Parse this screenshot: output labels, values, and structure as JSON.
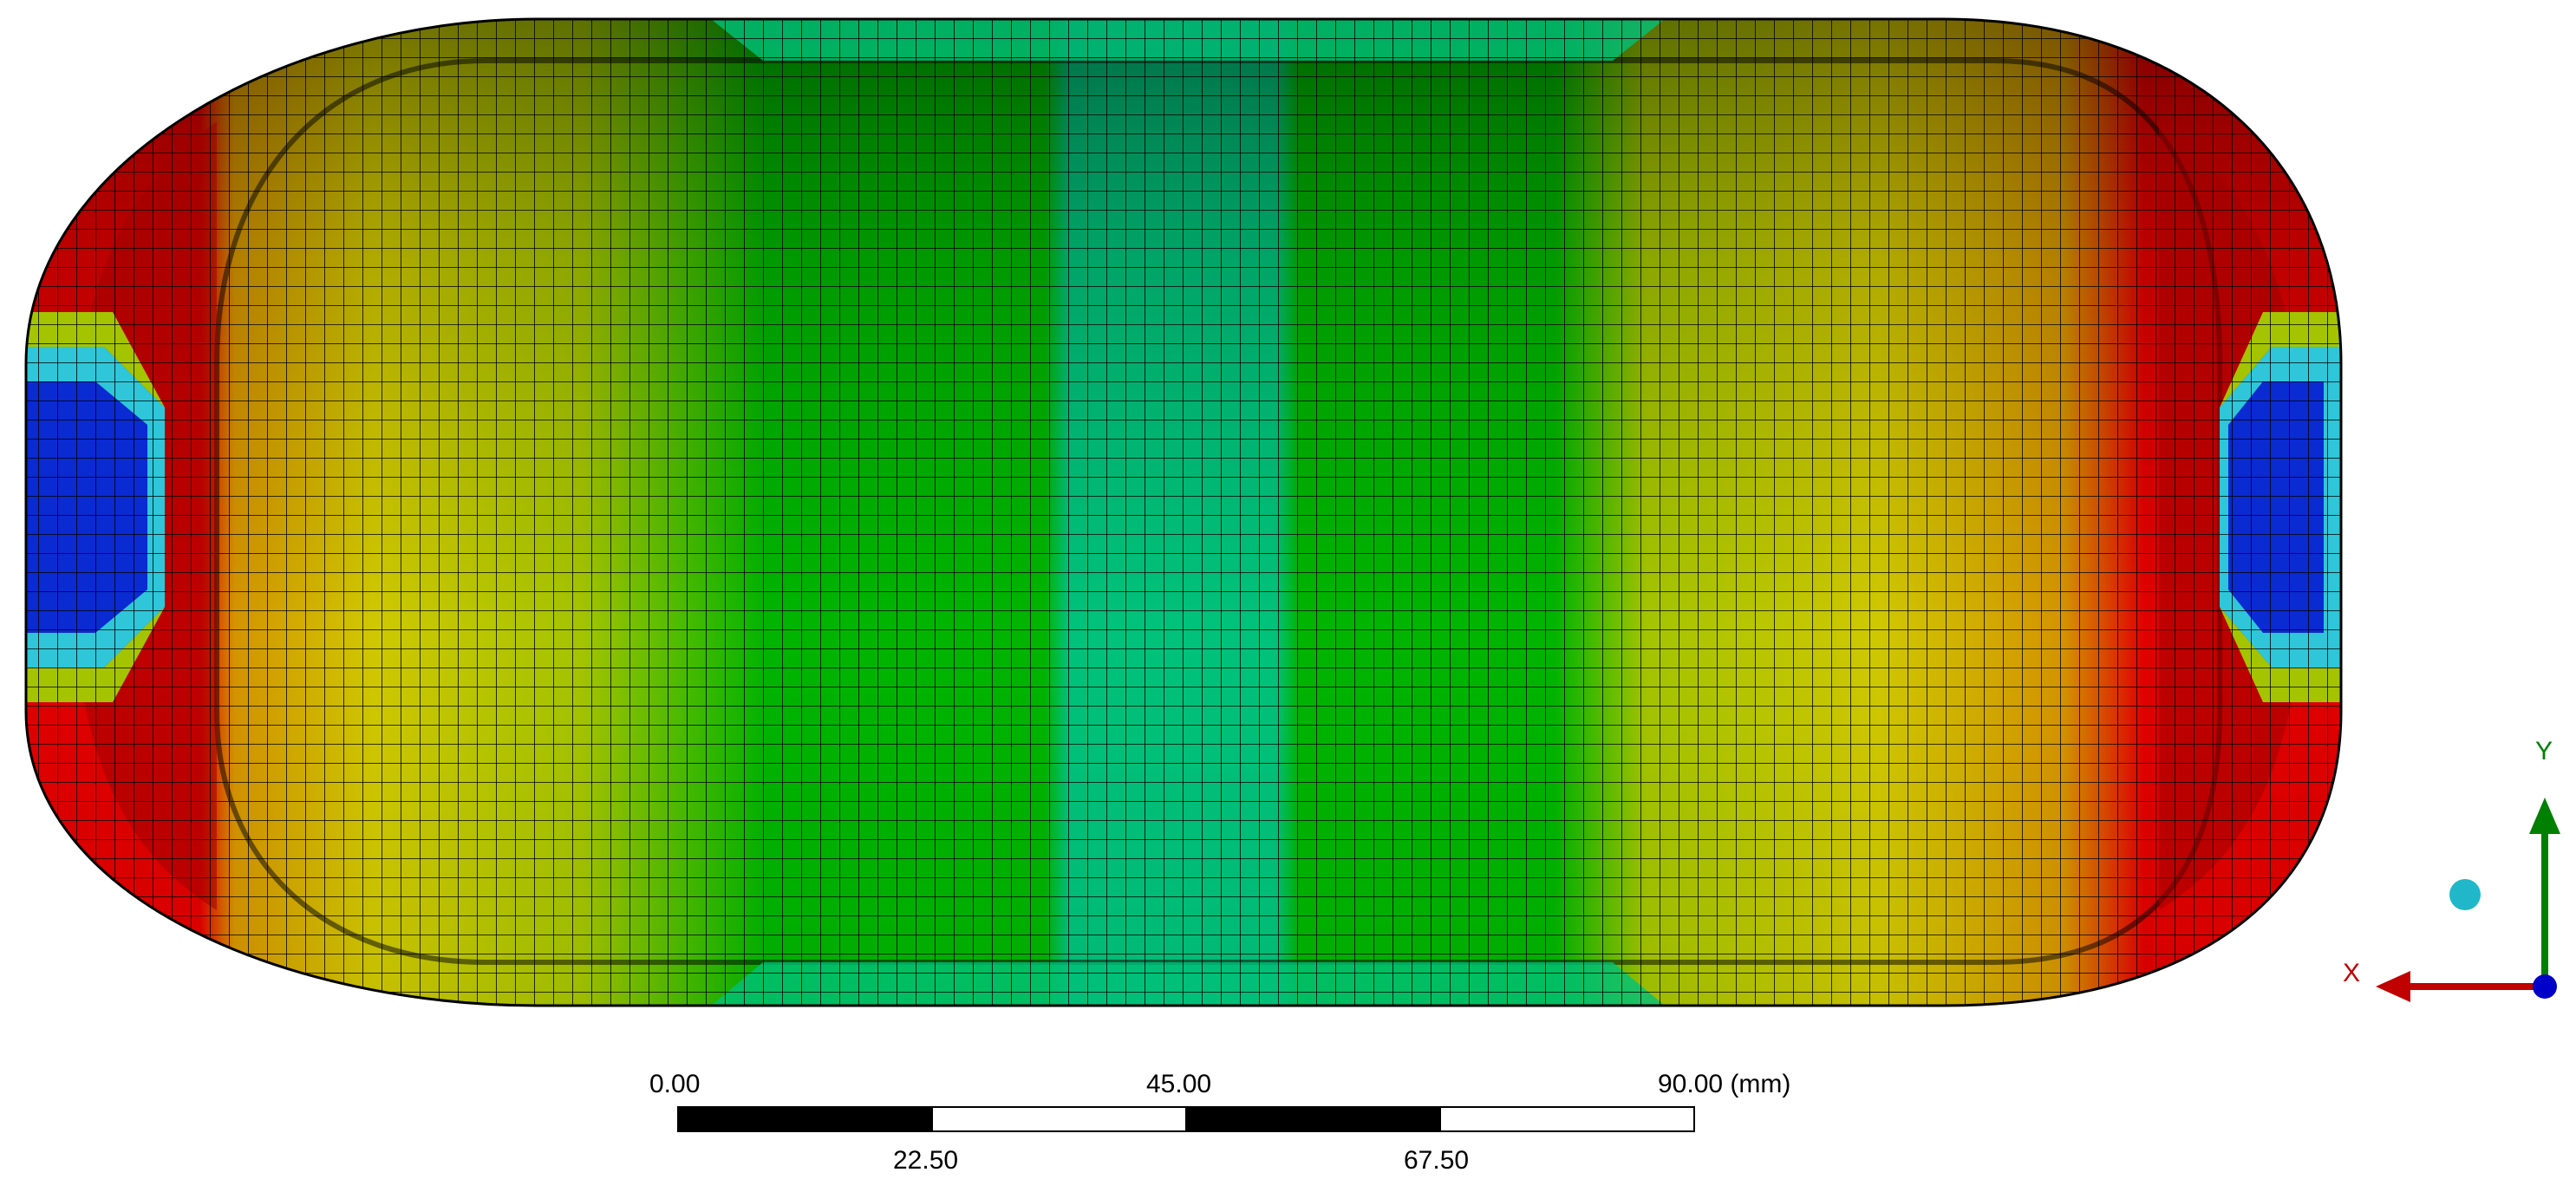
{
  "viewport": {
    "colors": {
      "red": "#e00000",
      "dark_red": "#8c0000",
      "orange": "#d49400",
      "yellow": "#cfc800",
      "yellow_green": "#a4c400",
      "green": "#00b400",
      "teal": "#00c27a",
      "light_blue": "#2ec6d8",
      "blue": "#0a2ad2",
      "mesh_line": "#000000"
    }
  },
  "scale_bar": {
    "labels_top": [
      "0.00",
      "45.00",
      "90.00 (mm)"
    ],
    "labels_bottom": [
      "22.50",
      "67.50"
    ],
    "segment_colors": [
      "#000000",
      "#ffffff",
      "#000000",
      "#ffffff"
    ]
  },
  "triad": {
    "x_label": "X",
    "y_label": "Y",
    "x_color": "#c00000",
    "y_color": "#008000",
    "z_color": "#0000c8",
    "iso_ball_color": "#20b8c8"
  }
}
